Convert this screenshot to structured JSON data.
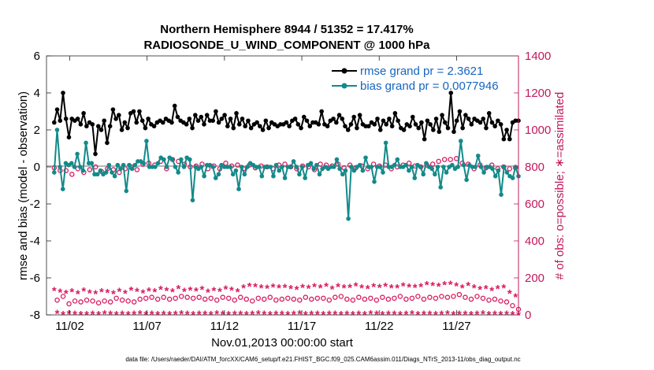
{
  "chart_data": {
    "type": "line",
    "title": "Northern Hemisphere 8944 / 51352 = 17.417%",
    "subtitle": "RADIOSONDE_U_WIND_COMPONENT @ 1000 hPa",
    "xlabel": "Nov.01,2013 00:00:00 start",
    "ylabel": "rmse and bias (model - observation)",
    "ylabel_right": "# of obs: o=possible; ∗=assimilated",
    "xlim": [
      0.5,
      31.0
    ],
    "ylim": [
      -8,
      6
    ],
    "ylim_right": [
      0,
      1400
    ],
    "x_ticks": [
      2,
      7,
      12,
      17,
      22,
      27
    ],
    "x_tick_labels": [
      "11/02",
      "11/07",
      "11/12",
      "11/17",
      "11/22",
      "11/27"
    ],
    "y_ticks": [
      -8,
      -6,
      -4,
      -2,
      0,
      2,
      4,
      6
    ],
    "y_ticks_right": [
      0,
      200,
      400,
      600,
      800,
      1000,
      1200,
      1400
    ],
    "footer": "data file: /Users/raeder/DAI/ATM_forcXX/CAM6_setup/f.e21.FHIST_BGC.f09_025.CAM6assim.011/Diags_NTrS_2013-11/obs_diag_output.nc",
    "series": [
      {
        "name": "rmse grand pr = 2.3621",
        "color": "#000000",
        "marker": "filled-circle",
        "axis": "left",
        "values": [
          2.4,
          3.1,
          2.5,
          4.0,
          2.6,
          1.6,
          2.6,
          2.5,
          2.6,
          2.3,
          2.9,
          2.2,
          2.4,
          2.3,
          0.7,
          2.2,
          2.0,
          2.5,
          1.3,
          2.2,
          3.1,
          2.6,
          2.8,
          2.0,
          2.4,
          2.1,
          2.9,
          3.0,
          2.4,
          3.0,
          2.5,
          2.1,
          2.6,
          2.3,
          2.2,
          2.4,
          2.5,
          2.4,
          2.6,
          2.5,
          2.4,
          3.3,
          2.7,
          2.5,
          2.4,
          2.3,
          2.6,
          2.1,
          2.8,
          2.5,
          2.7,
          2.3,
          2.8,
          2.5,
          2.5,
          3.0,
          2.4,
          2.6,
          2.8,
          2.2,
          2.6,
          2.1,
          2.9,
          2.3,
          2.6,
          2.2,
          2.5,
          2.1,
          2.3,
          2.4,
          2.2,
          2.0,
          2.5,
          2.1,
          2.4,
          2.3,
          2.2,
          2.3,
          2.3,
          2.4,
          2.2,
          2.5,
          2.6,
          2.3,
          2.1,
          2.7,
          2.5,
          2.2,
          2.4,
          2.4,
          2.3,
          3.0,
          2.3,
          2.2,
          2.5,
          2.6,
          2.4,
          2.8,
          2.6,
          2.2,
          2.0,
          2.3,
          2.7,
          2.1,
          2.8,
          2.3,
          2.2,
          2.2,
          2.4,
          2.3,
          2.6,
          2.0,
          2.5,
          2.3,
          2.6,
          2.2,
          2.9,
          2.5,
          2.1,
          2.0,
          2.3,
          2.2,
          2.7,
          2.3,
          2.1,
          2.4,
          1.5,
          2.5,
          2.3,
          2.0,
          2.6,
          1.9,
          2.8,
          2.4,
          2.1,
          4.0,
          1.9,
          2.5,
          3.0,
          2.1,
          2.8,
          2.6,
          2.3,
          2.6,
          2.5,
          2.4,
          2.6,
          2.1,
          2.9,
          2.4,
          2.2,
          2.5,
          2.3,
          1.5,
          2.0,
          1.5,
          2.4,
          2.5,
          2.5
        ]
      },
      {
        "name": "bias grand pr = 0.0077946",
        "color": "#138a8a",
        "marker": "filled-circle",
        "axis": "left",
        "values": [
          -0.3,
          2.0,
          0.0,
          -1.2,
          0.2,
          0.1,
          0.2,
          0.0,
          0.7,
          0.0,
          -0.2,
          1.3,
          0.2,
          0.2,
          -0.4,
          -0.4,
          -0.2,
          -0.4,
          -0.3,
          0.1,
          -0.3,
          -0.5,
          0.1,
          -0.1,
          0.1,
          -1.3,
          0.1,
          -0.1,
          0.1,
          0.3,
          0.3,
          0.2,
          1.4,
          0.0,
          0.0,
          0.0,
          0.2,
          0.5,
          0.4,
          0.0,
          0.5,
          0.4,
          0.0,
          -0.3,
          0.4,
          0.0,
          0.5,
          0.4,
          -1.8,
          0.0,
          -0.1,
          0.0,
          -0.5,
          0.1,
          0.1,
          0.0,
          -0.6,
          -0.4,
          0.1,
          0.0,
          0.0,
          0.0,
          -0.4,
          -0.2,
          -1.2,
          0.0,
          -0.4,
          0.0,
          0.2,
          0.1,
          0.0,
          0.0,
          -0.5,
          0.0,
          0.0,
          0.0,
          -0.5,
          0.1,
          -0.2,
          0.0,
          -0.6,
          0.0,
          0.0,
          0.3,
          0.0,
          -0.4,
          0.0,
          -0.6,
          0.1,
          0.2,
          -0.1,
          0.1,
          -0.4,
          -0.1,
          0.0,
          -0.1,
          0.0,
          0.0,
          0.4,
          -0.1,
          -0.4,
          -0.2,
          -2.8,
          0.0,
          -0.2,
          0.0,
          0.1,
          -0.2,
          0.5,
          0.0,
          0.0,
          -0.8,
          0.0,
          0.0,
          -0.3,
          1.3,
          0.0,
          0.0,
          0.1,
          0.4,
          0.0,
          0.0,
          0.1,
          -0.2,
          0.0,
          -0.6,
          0.1,
          0.0,
          -0.4,
          0.2,
          0.0,
          -0.1,
          -0.4,
          0.0,
          -1.1,
          0.0,
          -0.3,
          0.0,
          0.1,
          -0.1,
          0.0,
          1.4,
          0.1,
          -0.7,
          0.1,
          0.0,
          0.0,
          0.6,
          0.0,
          -0.3,
          0.0,
          0.0,
          -0.1,
          -0.5,
          -0.2,
          -1.5,
          0.0,
          -0.3,
          -0.5,
          -0.6,
          0.0,
          -0.5
        ]
      },
      {
        "name": "obs possible",
        "color": "#d81b60",
        "marker": "open-circle",
        "axis": "right",
        "values": [
          795,
          80,
          780,
          100,
          780,
          60,
          760,
          75,
          790,
          70,
          770,
          80,
          785,
          75,
          800,
          65,
          775,
          75,
          790,
          70,
          785,
          90,
          770,
          80,
          790,
          75,
          800,
          70,
          785,
          85,
          815,
          90,
          820,
          95,
          810,
          85,
          830,
          95,
          790,
          85,
          840,
          90,
          830,
          100,
          815,
          95,
          800,
          90,
          805,
          95,
          815,
          85,
          790,
          90,
          805,
          80,
          790,
          95,
          820,
          90,
          805,
          80,
          810,
          95,
          790,
          85,
          810,
          75,
          795,
          90,
          805,
          85,
          800,
          95,
          790,
          80,
          810,
          85,
          815,
          90,
          800,
          85,
          790,
          80,
          805,
          95,
          800,
          85,
          785,
          90,
          815,
          90,
          810,
          80,
          805,
          95,
          815,
          100,
          795,
          85,
          810,
          80,
          795,
          95,
          805,
          85,
          790,
          90,
          815,
          80,
          805,
          95,
          810,
          85,
          790,
          90,
          800,
          100,
          810,
          85,
          820,
          90,
          805,
          100,
          800,
          85,
          810,
          95,
          815,
          90,
          830,
          100,
          840,
          95,
          840,
          100,
          845,
          110,
          820,
          95,
          815,
          85,
          790,
          100,
          810,
          90,
          795,
          80,
          810,
          85,
          790,
          75,
          800,
          70,
          790,
          50,
          795,
          30
        ]
      },
      {
        "name": "obs assimilated",
        "color": "#d81b60",
        "marker": "asterisk",
        "axis": "right",
        "values": [
          135,
          10,
          125,
          5,
          120,
          8,
          128,
          6,
          118,
          5,
          132,
          4,
          122,
          6,
          118,
          5,
          128,
          8,
          124,
          6,
          116,
          5,
          130,
          7,
          120,
          5,
          136,
          6,
          130,
          8,
          122,
          5,
          132,
          6,
          128,
          4,
          140,
          7,
          134,
          5,
          128,
          6,
          145,
          8,
          130,
          6,
          136,
          5,
          132,
          7,
          140,
          6,
          126,
          5,
          135,
          8,
          130,
          6,
          142,
          4,
          136,
          6,
          128,
          7,
          150,
          5,
          158,
          6,
          155,
          8,
          150,
          6,
          146,
          5,
          154,
          7,
          148,
          6,
          152,
          5,
          144,
          6,
          140,
          8,
          152,
          5,
          146,
          6,
          155,
          7,
          150,
          5,
          158,
          6,
          142,
          6,
          155,
          5,
          148,
          7,
          152,
          4,
          160,
          6,
          150,
          5,
          145,
          8,
          155,
          6,
          152,
          5,
          158,
          7,
          148,
          6,
          150,
          5,
          160,
          6,
          154,
          8,
          152,
          5,
          156,
          6,
          165,
          7,
          162,
          5,
          158,
          6,
          165,
          8,
          168,
          5,
          160,
          6,
          150,
          7,
          162,
          5,
          150,
          6,
          140,
          8,
          145,
          5,
          135,
          6,
          145,
          4,
          150,
          6,
          120,
          5,
          100,
          3
        ]
      }
    ]
  }
}
